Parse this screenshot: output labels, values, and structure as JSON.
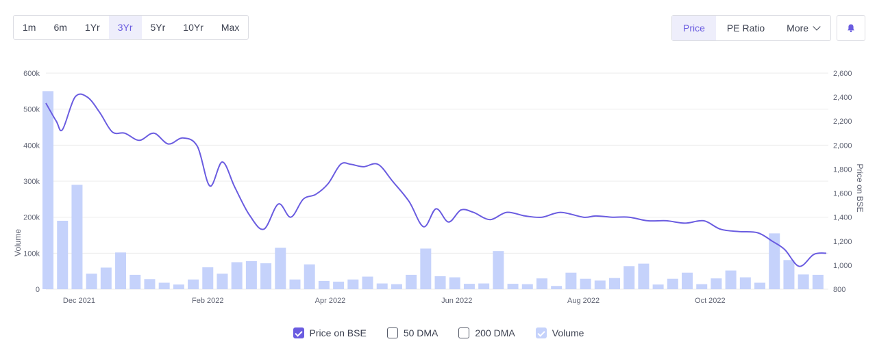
{
  "ranges": [
    {
      "label": "1m",
      "active": false
    },
    {
      "label": "6m",
      "active": false
    },
    {
      "label": "1Yr",
      "active": false
    },
    {
      "label": "3Yr",
      "active": true
    },
    {
      "label": "5Yr",
      "active": false
    },
    {
      "label": "10Yr",
      "active": false
    },
    {
      "label": "Max",
      "active": false
    }
  ],
  "metrics": {
    "price_label": "Price",
    "pe_label": "PE Ratio",
    "more_label": "More"
  },
  "alert_icon": "bell-icon",
  "colors": {
    "accent": "#6a5ce0",
    "price_line": "#6a5ce0",
    "volume_bar": "#c5d2fb",
    "grid": "#ebebeb"
  },
  "legend": [
    {
      "label": "Price on BSE",
      "checked": true
    },
    {
      "label": "50 DMA",
      "checked": false
    },
    {
      "label": "200 DMA",
      "checked": false
    },
    {
      "label": "Volume",
      "checked": true
    }
  ],
  "chart_data": {
    "type": "bar",
    "title": "",
    "grid": true,
    "legend_position": "bottom",
    "x_tick_labels": [
      "Dec 2021",
      "Feb 2022",
      "Apr 2022",
      "Jun 2022",
      "Aug 2022",
      "Oct 2022"
    ],
    "x_tick_dates": [
      "2021-12-01",
      "2022-02-01",
      "2022-04-01",
      "2022-06-01",
      "2022-08-01",
      "2022-10-01"
    ],
    "x_range": [
      "2021-11-15",
      "2022-11-27"
    ],
    "y_left": {
      "label": "Volume",
      "range": [
        0,
        600000
      ],
      "ticks": [
        "0",
        "100k",
        "200k",
        "300k",
        "400k",
        "500k",
        "600k"
      ]
    },
    "y_right": {
      "label": "Price on BSE",
      "range": [
        800,
        2600
      ],
      "ticks": [
        "800",
        "1,000",
        "1,200",
        "1,400",
        "1,600",
        "1,800",
        "2,000",
        "2,200",
        "2,400",
        "2,600"
      ]
    },
    "series": [
      {
        "name": "Volume",
        "type": "bar",
        "axis": "left",
        "x": [
          "2021-11-16",
          "2021-11-23",
          "2021-11-30",
          "2021-12-07",
          "2021-12-14",
          "2021-12-21",
          "2021-12-28",
          "2022-01-04",
          "2022-01-11",
          "2022-01-18",
          "2022-01-25",
          "2022-02-01",
          "2022-02-08",
          "2022-02-15",
          "2022-02-22",
          "2022-03-01",
          "2022-03-08",
          "2022-03-15",
          "2022-03-22",
          "2022-03-29",
          "2022-04-05",
          "2022-04-12",
          "2022-04-19",
          "2022-04-26",
          "2022-05-03",
          "2022-05-10",
          "2022-05-17",
          "2022-05-24",
          "2022-05-31",
          "2022-06-07",
          "2022-06-14",
          "2022-06-21",
          "2022-06-28",
          "2022-07-05",
          "2022-07-12",
          "2022-07-19",
          "2022-07-26",
          "2022-08-02",
          "2022-08-09",
          "2022-08-16",
          "2022-08-23",
          "2022-08-30",
          "2022-09-06",
          "2022-09-13",
          "2022-09-20",
          "2022-09-27",
          "2022-10-04",
          "2022-10-11",
          "2022-10-18",
          "2022-10-25",
          "2022-11-01",
          "2022-11-08",
          "2022-11-15",
          "2022-11-22"
        ],
        "values": [
          550000,
          190000,
          290000,
          43000,
          60000,
          102000,
          40000,
          28000,
          18000,
          13000,
          27000,
          61000,
          43000,
          75000,
          78000,
          72000,
          115000,
          27000,
          69000,
          23000,
          21000,
          27000,
          35000,
          16000,
          14000,
          40000,
          113000,
          36000,
          33000,
          15000,
          16000,
          106000,
          15000,
          14000,
          30000,
          9000,
          46000,
          29000,
          24000,
          31000,
          64000,
          71000,
          13000,
          29000,
          46000,
          14000,
          30000,
          52000,
          33000,
          18000,
          155000,
          81000,
          41000,
          40000
        ]
      },
      {
        "name": "Price on BSE",
        "type": "line",
        "axis": "right",
        "x": [
          "2021-11-15",
          "2021-11-20",
          "2021-11-23",
          "2021-11-29",
          "2021-12-05",
          "2021-12-11",
          "2021-12-17",
          "2021-12-23",
          "2021-12-30",
          "2022-01-06",
          "2022-01-13",
          "2022-01-20",
          "2022-01-27",
          "2022-02-02",
          "2022-02-08",
          "2022-02-14",
          "2022-02-21",
          "2022-02-28",
          "2022-03-07",
          "2022-03-13",
          "2022-03-19",
          "2022-03-25",
          "2022-03-31",
          "2022-04-06",
          "2022-04-11",
          "2022-04-17",
          "2022-04-24",
          "2022-05-01",
          "2022-05-09",
          "2022-05-16",
          "2022-05-22",
          "2022-05-28",
          "2022-06-03",
          "2022-06-09",
          "2022-06-17",
          "2022-06-25",
          "2022-07-04",
          "2022-07-12",
          "2022-07-21",
          "2022-08-01",
          "2022-08-07",
          "2022-08-15",
          "2022-08-23",
          "2022-09-01",
          "2022-09-10",
          "2022-09-19",
          "2022-09-28",
          "2022-10-06",
          "2022-10-15",
          "2022-10-24",
          "2022-10-31",
          "2022-11-06",
          "2022-11-13",
          "2022-11-20",
          "2022-11-26"
        ],
        "values": [
          2350,
          2200,
          2130,
          2400,
          2400,
          2270,
          2110,
          2100,
          2040,
          2100,
          2010,
          2060,
          1990,
          1660,
          1860,
          1650,
          1420,
          1300,
          1510,
          1400,
          1550,
          1590,
          1680,
          1840,
          1840,
          1820,
          1840,
          1700,
          1530,
          1320,
          1470,
          1360,
          1460,
          1440,
          1380,
          1440,
          1410,
          1400,
          1440,
          1400,
          1410,
          1400,
          1400,
          1370,
          1370,
          1350,
          1370,
          1300,
          1280,
          1270,
          1200,
          1130,
          990,
          1090,
          1100
        ]
      }
    ]
  }
}
